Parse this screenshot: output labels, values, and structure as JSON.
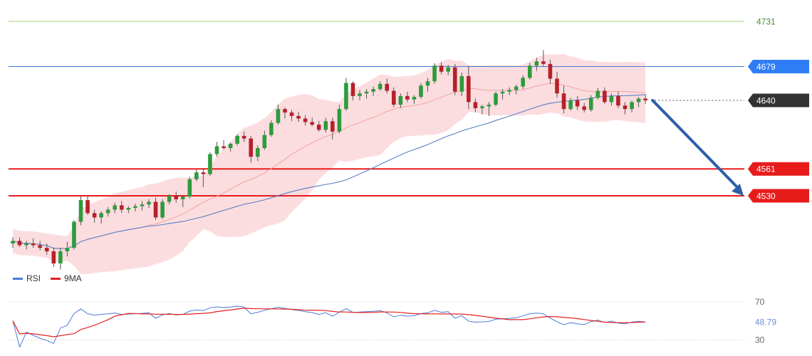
{
  "chart_data": {
    "type": "candlestick",
    "price_axis": {
      "range": [
        4452,
        4736
      ]
    },
    "levels": [
      {
        "value": 4731,
        "label": "4731",
        "color": "#9bd17a",
        "style": "thin"
      },
      {
        "value": 4679,
        "label": "4679",
        "color": "#3d7bd9",
        "style": "thin",
        "badge": "#2f7df6"
      },
      {
        "value": 4640,
        "label": "4640",
        "color": "#555555",
        "style": "dotted",
        "badge": "#333333"
      },
      {
        "value": 4561,
        "label": "4561",
        "color": "#e81b1b",
        "style": "thick",
        "badge": "#e81b1b"
      },
      {
        "value": 4530,
        "label": "4530",
        "color": "#e81b1b",
        "style": "thick",
        "badge": "#e81b1b"
      }
    ],
    "projection": {
      "from": 4640,
      "to": 4530,
      "color": "#2e5fa8"
    },
    "ohlc": [
      [
        4475,
        4482,
        4470,
        4478
      ],
      [
        4478,
        4482,
        4471,
        4473
      ],
      [
        4473,
        4478,
        4468,
        4475
      ],
      [
        4475,
        4481,
        4470,
        4473
      ],
      [
        4473,
        4478,
        4467,
        4470
      ],
      [
        4470,
        4475,
        4462,
        4466
      ],
      [
        4466,
        4470,
        4448,
        4452
      ],
      [
        4452,
        4470,
        4445,
        4466
      ],
      [
        4466,
        4477,
        4460,
        4470
      ],
      [
        4470,
        4502,
        4468,
        4500
      ],
      [
        4500,
        4530,
        4496,
        4525
      ],
      [
        4525,
        4530,
        4508,
        4510
      ],
      [
        4510,
        4514,
        4499,
        4505
      ],
      [
        4505,
        4512,
        4498,
        4510
      ],
      [
        4510,
        4517,
        4506,
        4514
      ],
      [
        4514,
        4522,
        4510,
        4519
      ],
      [
        4519,
        4524,
        4510,
        4514
      ],
      [
        4514,
        4518,
        4510,
        4516
      ],
      [
        4516,
        4521,
        4512,
        4518
      ],
      [
        4518,
        4524,
        4513,
        4520
      ],
      [
        4520,
        4526,
        4516,
        4523
      ],
      [
        4523,
        4528,
        4502,
        4505
      ],
      [
        4505,
        4526,
        4503,
        4523
      ],
      [
        4523,
        4532,
        4520,
        4530
      ],
      [
        4530,
        4535,
        4522,
        4526
      ],
      [
        4526,
        4531,
        4517,
        4529
      ],
      [
        4529,
        4552,
        4527,
        4549
      ],
      [
        4549,
        4560,
        4547,
        4557
      ],
      [
        4557,
        4562,
        4540,
        4555
      ],
      [
        4555,
        4580,
        4553,
        4578
      ],
      [
        4578,
        4592,
        4575,
        4587
      ],
      [
        4587,
        4594,
        4583,
        4585
      ],
      [
        4585,
        4591,
        4581,
        4590
      ],
      [
        4590,
        4601,
        4588,
        4599
      ],
      [
        4599,
        4604,
        4592,
        4596
      ],
      [
        4596,
        4599,
        4568,
        4575
      ],
      [
        4575,
        4588,
        4570,
        4585
      ],
      [
        4585,
        4605,
        4583,
        4600
      ],
      [
        4600,
        4617,
        4598,
        4614
      ],
      [
        4614,
        4635,
        4612,
        4630
      ],
      [
        4630,
        4632,
        4619,
        4626
      ],
      [
        4626,
        4629,
        4616,
        4622
      ],
      [
        4622,
        4627,
        4615,
        4619
      ],
      [
        4619,
        4623,
        4611,
        4615
      ],
      [
        4615,
        4620,
        4610,
        4612
      ],
      [
        4612,
        4616,
        4604,
        4606
      ],
      [
        4606,
        4620,
        4603,
        4616
      ],
      [
        4616,
        4620,
        4595,
        4604
      ],
      [
        4604,
        4635,
        4602,
        4630
      ],
      [
        4630,
        4666,
        4628,
        4660
      ],
      [
        4660,
        4662,
        4640,
        4645
      ],
      [
        4645,
        4652,
        4640,
        4648
      ],
      [
        4648,
        4653,
        4642,
        4650
      ],
      [
        4650,
        4656,
        4645,
        4653
      ],
      [
        4653,
        4662,
        4651,
        4659
      ],
      [
        4659,
        4665,
        4648,
        4651
      ],
      [
        4651,
        4655,
        4632,
        4635
      ],
      [
        4635,
        4648,
        4631,
        4645
      ],
      [
        4645,
        4650,
        4638,
        4641
      ],
      [
        4641,
        4646,
        4636,
        4644
      ],
      [
        4644,
        4660,
        4642,
        4657
      ],
      [
        4657,
        4666,
        4650,
        4662
      ],
      [
        4662,
        4683,
        4659,
        4680
      ],
      [
        4680,
        4684,
        4670,
        4673
      ],
      [
        4673,
        4681,
        4669,
        4678
      ],
      [
        4678,
        4682,
        4646,
        4650
      ],
      [
        4650,
        4672,
        4645,
        4668
      ],
      [
        4668,
        4680,
        4630,
        4638
      ],
      [
        4638,
        4642,
        4626,
        4631
      ],
      [
        4631,
        4635,
        4624,
        4633
      ],
      [
        4633,
        4638,
        4622,
        4635
      ],
      [
        4635,
        4650,
        4633,
        4648
      ],
      [
        4648,
        4653,
        4641,
        4650
      ],
      [
        4650,
        4655,
        4646,
        4652
      ],
      [
        4652,
        4658,
        4647,
        4656
      ],
      [
        4656,
        4669,
        4653,
        4666
      ],
      [
        4666,
        4683,
        4664,
        4680
      ],
      [
        4680,
        4689,
        4674,
        4685
      ],
      [
        4685,
        4698,
        4679,
        4682
      ],
      [
        4682,
        4687,
        4659,
        4665
      ],
      [
        4665,
        4673,
        4643,
        4648
      ],
      [
        4648,
        4657,
        4625,
        4630
      ],
      [
        4630,
        4643,
        4628,
        4640
      ],
      [
        4640,
        4645,
        4629,
        4633
      ],
      [
        4633,
        4637,
        4626,
        4629
      ],
      [
        4629,
        4646,
        4627,
        4643
      ],
      [
        4643,
        4654,
        4641,
        4651
      ],
      [
        4651,
        4655,
        4636,
        4638
      ],
      [
        4638,
        4648,
        4634,
        4645
      ],
      [
        4645,
        4650,
        4631,
        4634
      ],
      [
        4634,
        4638,
        4624,
        4630
      ],
      [
        4630,
        4640,
        4626,
        4638
      ],
      [
        4638,
        4644,
        4632,
        4642
      ],
      [
        4642,
        4647,
        4636,
        4640
      ]
    ],
    "rsi_panel": {
      "legend": [
        {
          "name": "RSI",
          "color": "#4a7bdc"
        },
        {
          "name": "9MA",
          "color": "#e32020"
        }
      ],
      "y_range": [
        22,
        82
      ],
      "levels": [
        {
          "value": 70,
          "label": "70"
        },
        {
          "value": 30,
          "label": "30"
        }
      ],
      "current": {
        "value": 48.79,
        "label": "48.79",
        "color": "#6d8fd6"
      }
    }
  }
}
